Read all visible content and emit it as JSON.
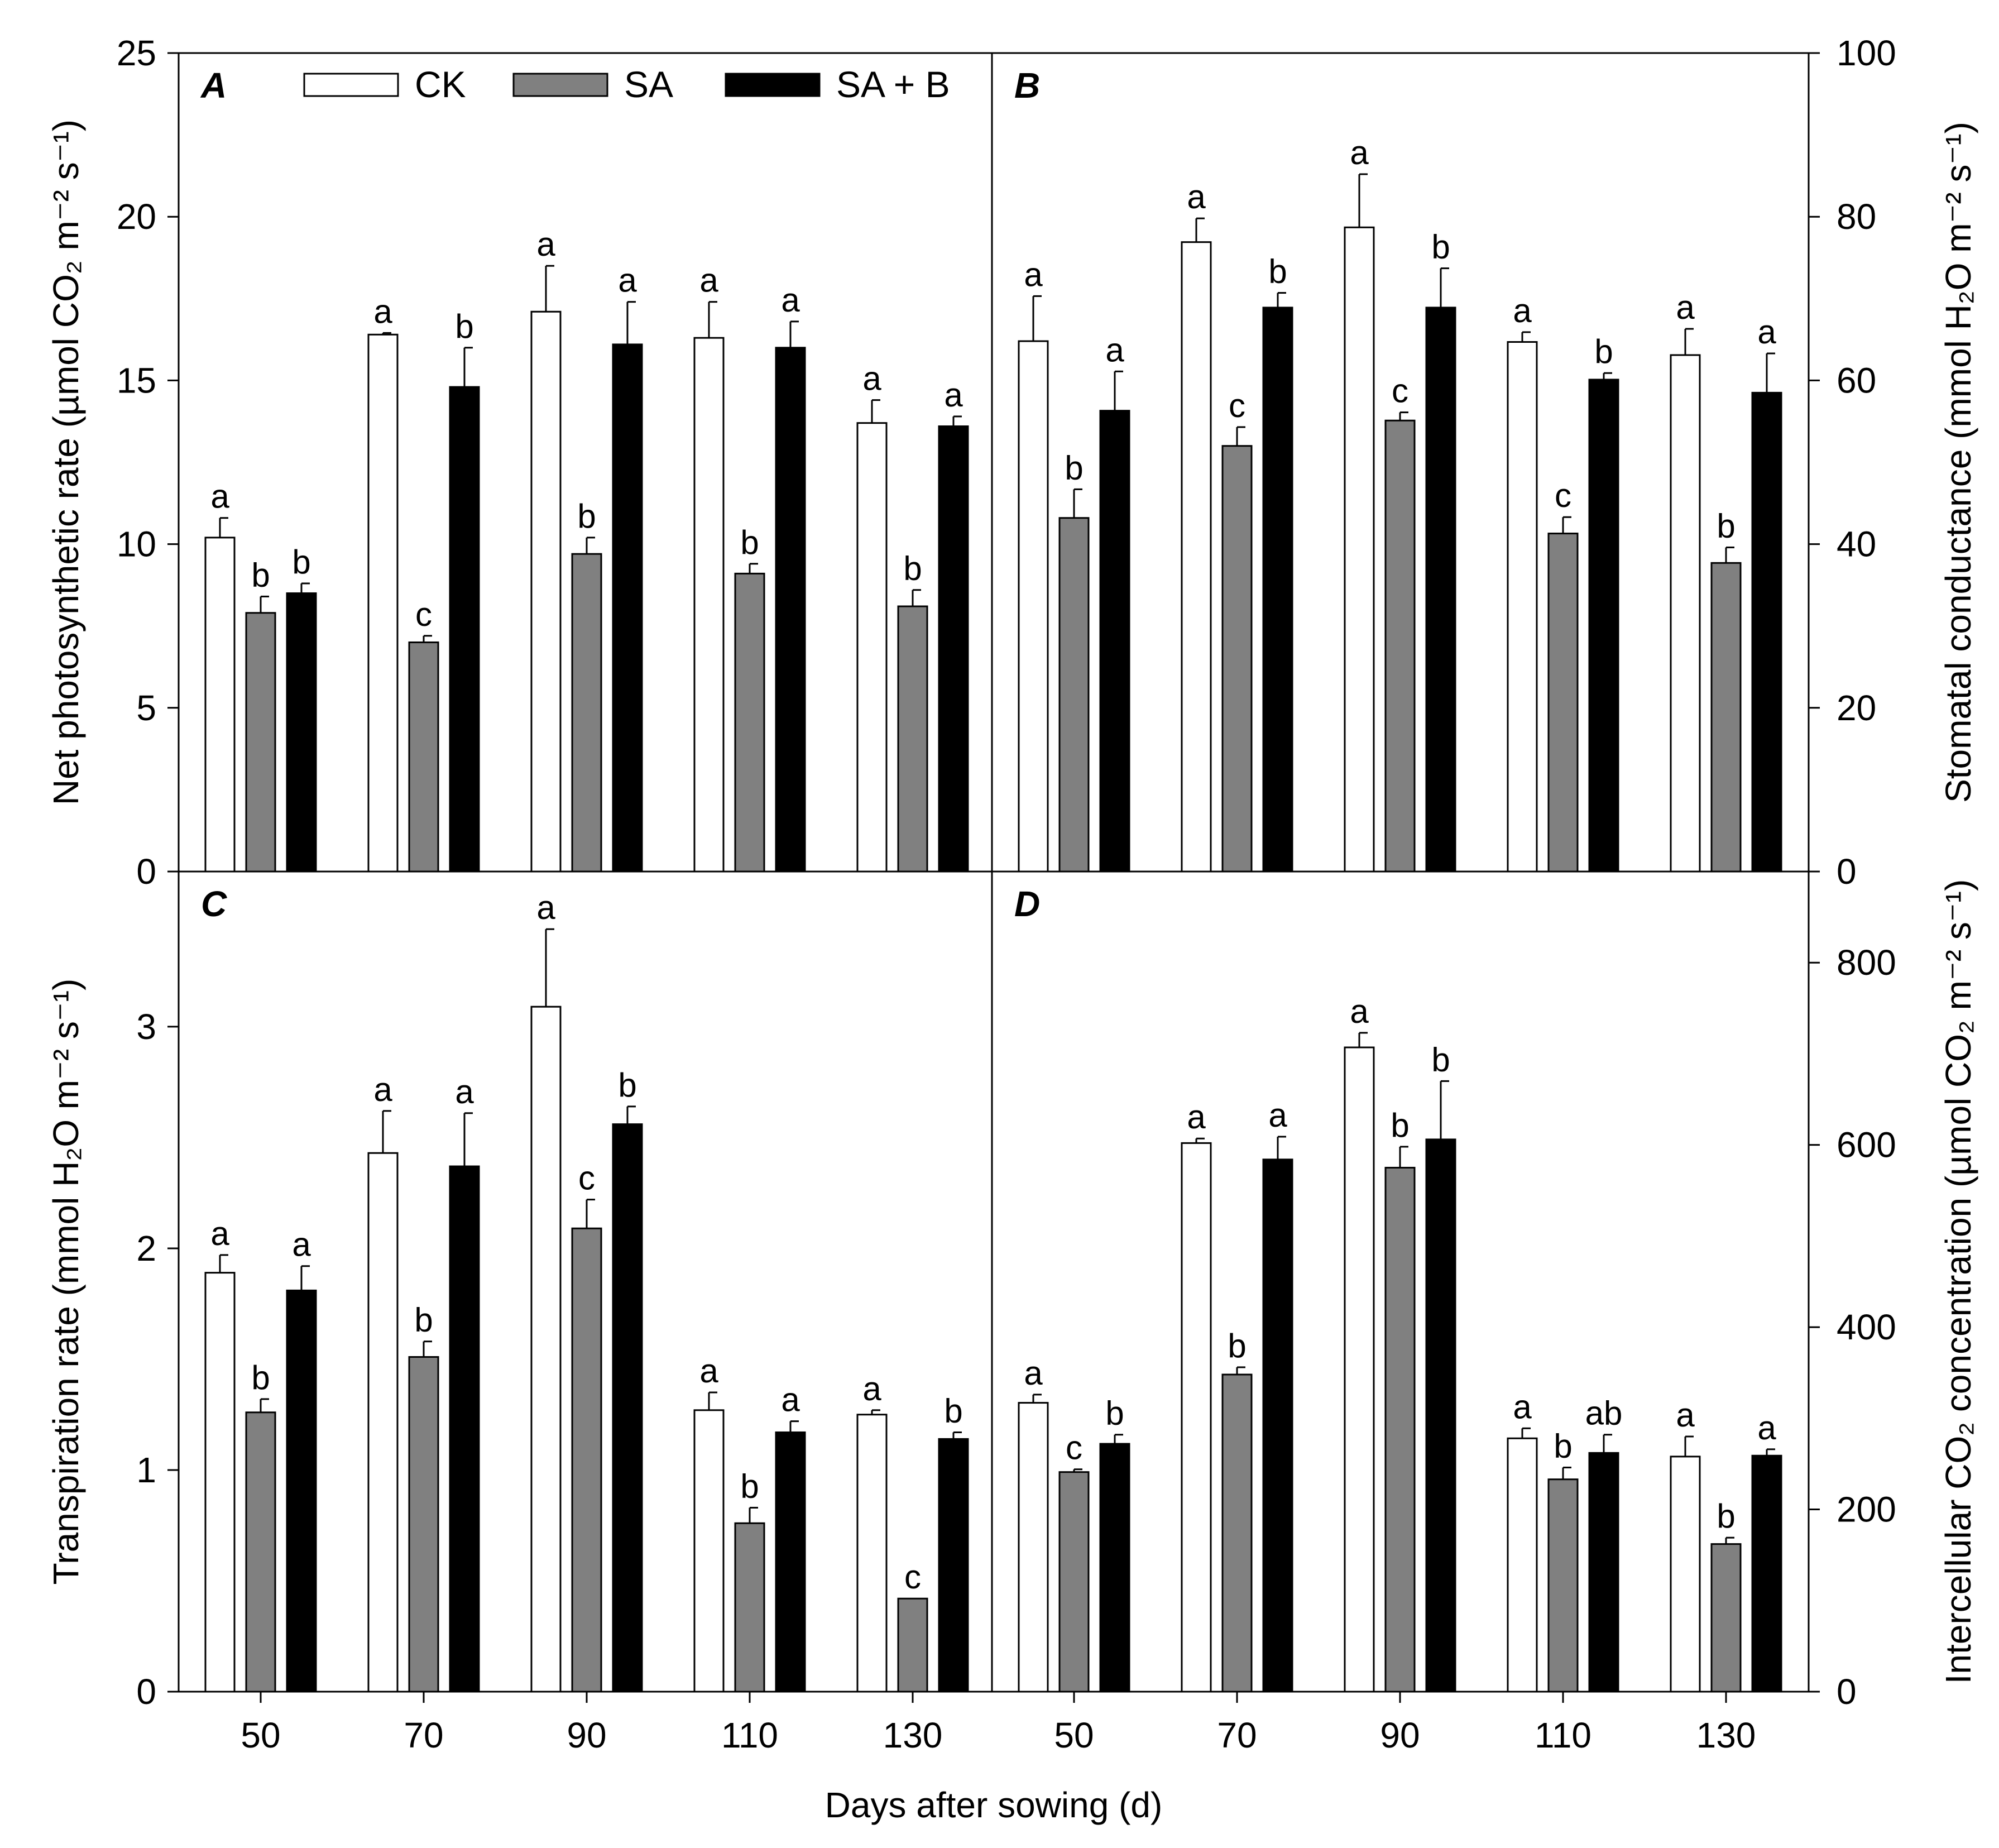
{
  "chart_data": {
    "type": "bar",
    "categories": [
      "50",
      "70",
      "90",
      "110",
      "130"
    ],
    "xlabel": "Days after sowing (d)",
    "series_names": [
      "CK",
      "SA",
      "SA + B"
    ],
    "series_colors": [
      "#ffffff",
      "#808080",
      "#000000"
    ],
    "panels": [
      {
        "id": "A",
        "label": "A",
        "ylabel": "Net photosynthetic rate (µmol CO₂ m⁻² s⁻¹)",
        "ylim": [
          0,
          25
        ],
        "yticks": [
          "0",
          "5",
          "10",
          "15",
          "20",
          "25"
        ],
        "yticks_values": [
          0,
          5,
          10,
          15,
          20,
          25
        ],
        "series": [
          {
            "name": "CK",
            "values": [
              10.2,
              16.4,
              17.1,
              16.3,
              13.7
            ],
            "errors": [
              0.6,
              0.05,
              1.4,
              1.1,
              0.7
            ],
            "letters": [
              "a",
              "a",
              "a",
              "a",
              "a"
            ]
          },
          {
            "name": "SA",
            "values": [
              7.9,
              7.0,
              9.7,
              9.1,
              8.1
            ],
            "errors": [
              0.5,
              0.2,
              0.5,
              0.3,
              0.5
            ],
            "letters": [
              "b",
              "c",
              "b",
              "b",
              "b"
            ]
          },
          {
            "name": "SA + B",
            "values": [
              8.5,
              14.8,
              16.1,
              16.0,
              13.6
            ],
            "errors": [
              0.3,
              1.2,
              1.3,
              0.8,
              0.3
            ],
            "letters": [
              "b",
              "b",
              "a",
              "a",
              "a"
            ]
          }
        ]
      },
      {
        "id": "B",
        "label": "B",
        "ylabel": "Stomatal conductance (mmol H₂O m⁻² s⁻¹)",
        "ylim": [
          0,
          100
        ],
        "yticks": [
          "0",
          "20",
          "40",
          "60",
          "80",
          "100"
        ],
        "yticks_values": [
          0,
          20,
          40,
          60,
          80,
          100
        ],
        "series": [
          {
            "name": "CK",
            "values": [
              64.8,
              76.9,
              78.7,
              64.7,
              63.1
            ],
            "errors": [
              5.5,
              2.9,
              6.5,
              1.2,
              3.2
            ],
            "letters": [
              "a",
              "a",
              "a",
              "a",
              "a"
            ]
          },
          {
            "name": "SA",
            "values": [
              43.2,
              52.0,
              55.1,
              41.3,
              37.7
            ],
            "errors": [
              3.5,
              2.3,
              1.0,
              2.0,
              1.9
            ],
            "letters": [
              "b",
              "c",
              "c",
              "c",
              "b"
            ]
          },
          {
            "name": "SA + B",
            "values": [
              56.3,
              68.9,
              68.9,
              60.1,
              58.5
            ],
            "errors": [
              4.8,
              1.8,
              4.8,
              0.8,
              4.8
            ],
            "letters": [
              "a",
              "b",
              "b",
              "b",
              "a"
            ]
          }
        ]
      },
      {
        "id": "C",
        "label": "C",
        "ylabel": "Transpiration rate (mmol H₂O m⁻² s⁻¹)",
        "ylim": [
          0,
          3.7
        ],
        "yticks": [
          "0",
          "1",
          "2",
          "3"
        ],
        "yticks_values": [
          0,
          1,
          2,
          3
        ],
        "series": [
          {
            "name": "CK",
            "values": [
              1.89,
              2.43,
              3.09,
              1.27,
              1.25
            ],
            "errors": [
              0.08,
              0.19,
              0.35,
              0.08,
              0.02
            ],
            "letters": [
              "a",
              "a",
              "a",
              "a",
              "a"
            ]
          },
          {
            "name": "SA",
            "values": [
              1.26,
              1.51,
              2.09,
              0.76,
              0.42
            ],
            "errors": [
              0.06,
              0.07,
              0.13,
              0.07,
              0.0
            ],
            "letters": [
              "b",
              "b",
              "c",
              "b",
              "c"
            ]
          },
          {
            "name": "SA + B",
            "values": [
              1.81,
              2.37,
              2.56,
              1.17,
              1.14
            ],
            "errors": [
              0.11,
              0.24,
              0.08,
              0.05,
              0.03
            ],
            "letters": [
              "a",
              "a",
              "b",
              "a",
              "b"
            ]
          }
        ]
      },
      {
        "id": "D",
        "label": "D",
        "ylabel": "Intercellular CO₂ concentration (µmol CO₂ m⁻² s⁻¹)",
        "ylim": [
          0,
          900
        ],
        "yticks": [
          "0",
          "200",
          "400",
          "600",
          "800"
        ],
        "yticks_values": [
          0,
          200,
          400,
          600,
          800
        ],
        "series": [
          {
            "name": "CK",
            "values": [
              317,
              602,
              707,
              278,
              258
            ],
            "errors": [
              9,
              5,
              16,
              11,
              22
            ],
            "letters": [
              "a",
              "a",
              "a",
              "a",
              "a"
            ]
          },
          {
            "name": "SA",
            "values": [
              241,
              348,
              575,
              233,
              162
            ],
            "errors": [
              3,
              8,
              23,
              13,
              7
            ],
            "letters": [
              "c",
              "b",
              "b",
              "b",
              "b"
            ]
          },
          {
            "name": "SA + B",
            "values": [
              272,
              584,
              606,
              262,
              259
            ],
            "errors": [
              10,
              25,
              64,
              20,
              7
            ],
            "letters": [
              "b",
              "a",
              "b",
              "ab",
              "a"
            ]
          }
        ]
      }
    ]
  }
}
